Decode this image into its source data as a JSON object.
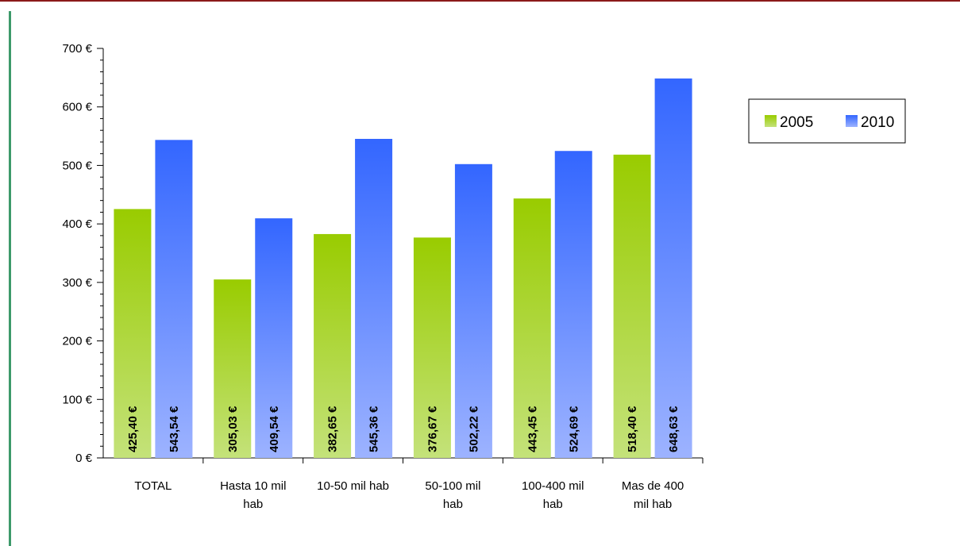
{
  "chart_data": {
    "type": "bar",
    "categories": [
      [
        "TOTAL"
      ],
      [
        "Hasta 10 mil",
        "hab"
      ],
      [
        "10-50 mil hab"
      ],
      [
        "50-100 mil",
        "hab"
      ],
      [
        "100-400 mil",
        "hab"
      ],
      [
        "Mas de 400",
        "mil hab"
      ]
    ],
    "series": [
      {
        "name": "2005",
        "values": [
          425.4,
          305.03,
          382.65,
          376.67,
          443.45,
          518.4
        ],
        "labels": [
          "425,40 €",
          "305,03 €",
          "382,65 €",
          "376,67 €",
          "443,45 €",
          "518,40 €"
        ],
        "color_top": "#99cc00",
        "color_bottom": "#c4e27a"
      },
      {
        "name": "2010",
        "values": [
          543.54,
          409.54,
          545.36,
          502.22,
          524.69,
          648.63
        ],
        "labels": [
          "543,54 €",
          "409,54 €",
          "545,36 €",
          "502,22 €",
          "524,69 €",
          "648,63 €"
        ],
        "color_top": "#3366ff",
        "color_bottom": "#9db3ff"
      }
    ],
    "y_ticks": [
      "0 €",
      "100 €",
      "200 €",
      "300 €",
      "400 €",
      "500 €",
      "600 €",
      "700 €"
    ],
    "ylim": [
      0,
      700
    ],
    "y_major_step": 100,
    "y_minor_step": 20,
    "grid": false,
    "legend": "right"
  }
}
